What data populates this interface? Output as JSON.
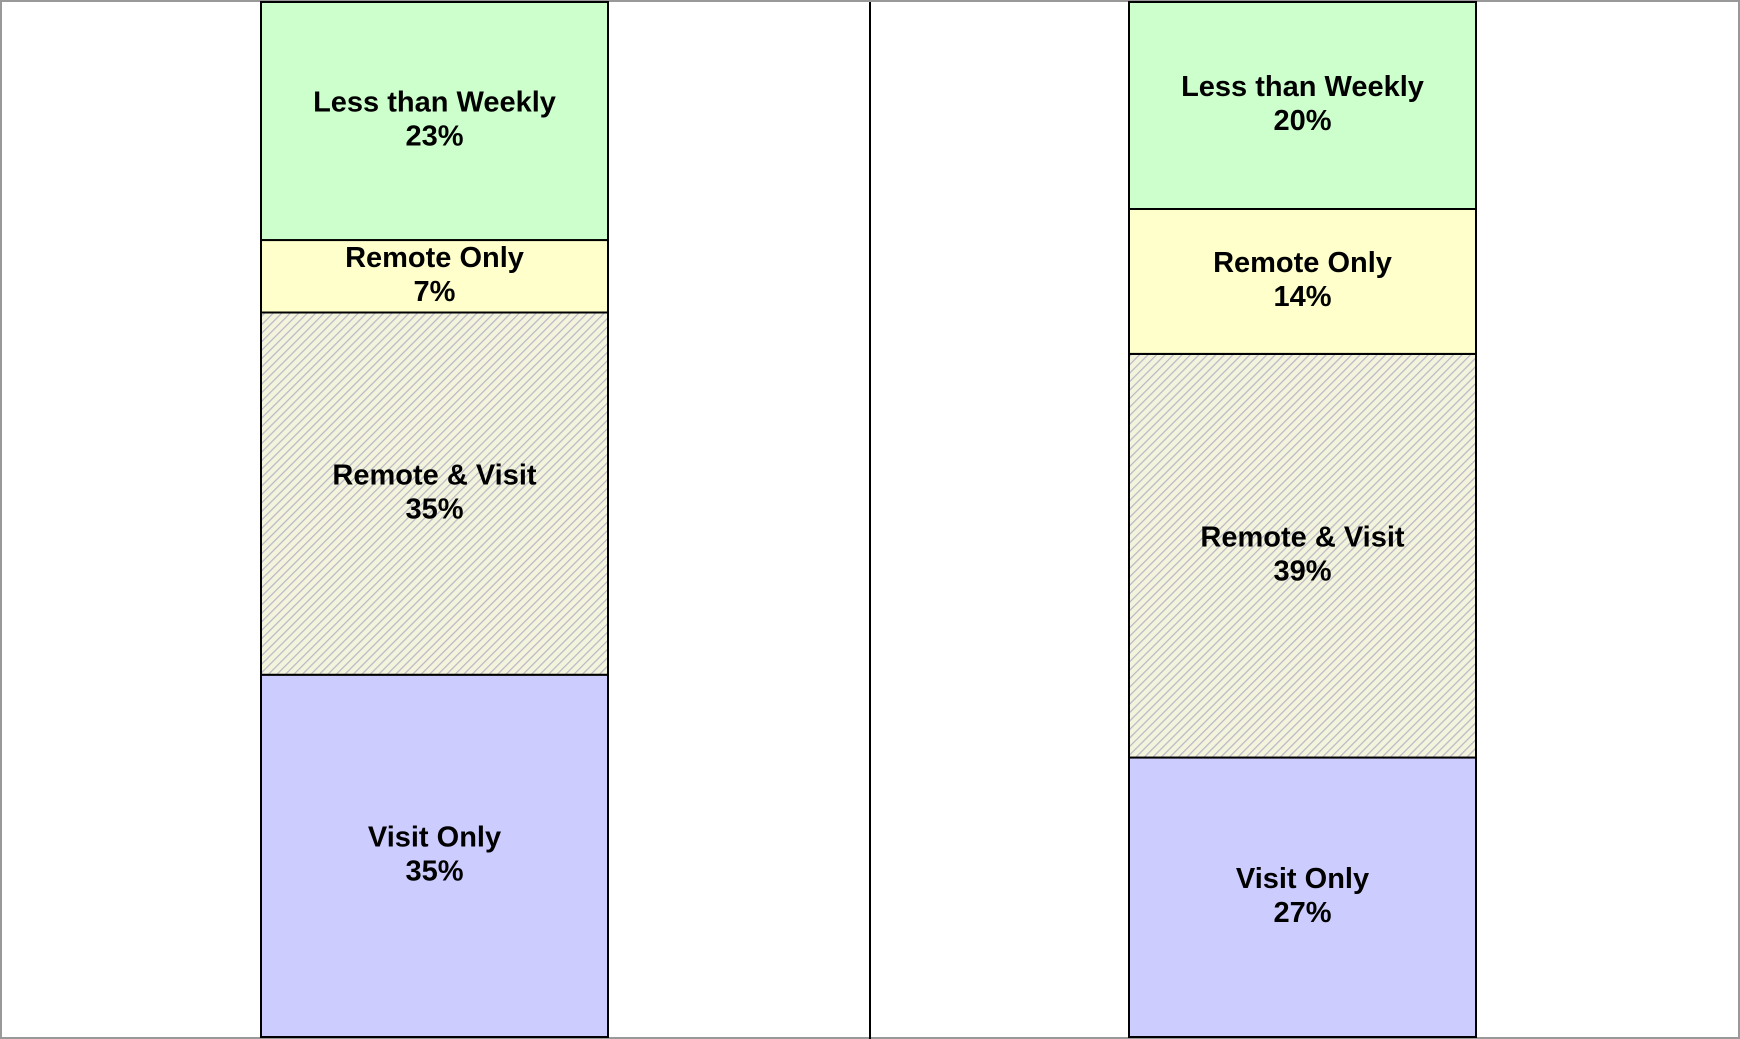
{
  "chart_data": {
    "type": "bar",
    "stacked": true,
    "categories": [
      null,
      null
    ],
    "ylim": [
      0,
      100
    ],
    "series": [
      {
        "name": "Visit Only",
        "color": "#ccccff",
        "values": [
          35,
          27
        ],
        "value_labels": [
          "35%",
          "27%"
        ]
      },
      {
        "name": "Remote & Visit",
        "color": "hatch",
        "values": [
          35,
          39
        ],
        "value_labels": [
          "35%",
          "39%"
        ]
      },
      {
        "name": "Remote Only",
        "color": "#ffffcc",
        "values": [
          7,
          14
        ],
        "value_labels": [
          "7%",
          "14%"
        ]
      },
      {
        "name": "Less than Weekly",
        "color": "#ccffcc",
        "values": [
          23,
          20
        ],
        "value_labels": [
          "23%",
          "20%"
        ]
      }
    ]
  }
}
